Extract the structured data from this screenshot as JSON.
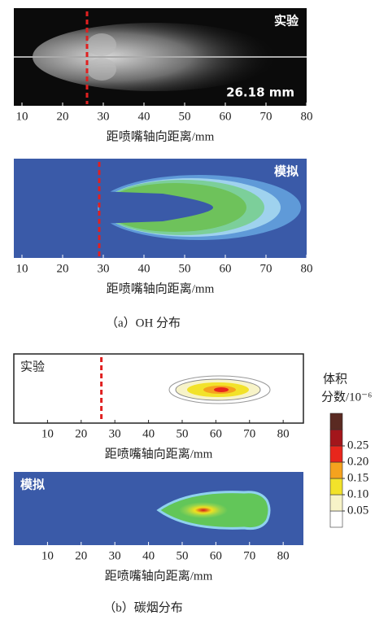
{
  "panels": [
    {
      "label": "实验",
      "annotation": "26.18 mm",
      "xlim": [
        8,
        80
      ],
      "xticks": [
        10,
        20,
        30,
        40,
        50,
        60,
        70,
        80
      ],
      "xlabel": "距喷嘴轴向距离/mm",
      "dashed_x": 26
    },
    {
      "label": "模拟",
      "xlim": [
        8,
        80
      ],
      "xticks": [
        10,
        20,
        30,
        40,
        50,
        60,
        70,
        80
      ],
      "xlabel": "距喷嘴轴向距离/mm",
      "dashed_x": 29
    },
    {
      "label": "实验",
      "xlim": [
        0,
        86
      ],
      "xticks": [
        10,
        20,
        30,
        40,
        50,
        60,
        70,
        80
      ],
      "xlabel": "距喷嘴轴向距离/mm",
      "dashed_x": 26
    },
    {
      "label": "模拟",
      "xlim": [
        0,
        86
      ],
      "xticks": [
        10,
        20,
        30,
        40,
        50,
        60,
        70,
        80
      ],
      "xlabel": "距喷嘴轴向距离/mm"
    }
  ],
  "captions": [
    "（a）OH 分布",
    "（b）碳烟分布"
  ],
  "colorbar": {
    "title": [
      "体积",
      "分数/10⁻⁶"
    ],
    "ticks": [
      0.05,
      {
        "value": 0.1,
        "label": "0.10"
      },
      0.15,
      {
        "value": 0.2,
        "label": "0.20"
      },
      0.25
    ],
    "lim": [
      0,
      0.35
    ],
    "colors": [
      "#ffffff",
      "#f7f3c8",
      "#f2e22a",
      "#f5a21e",
      "#e8261c",
      "#a3161b",
      "#5a2a22"
    ]
  }
}
